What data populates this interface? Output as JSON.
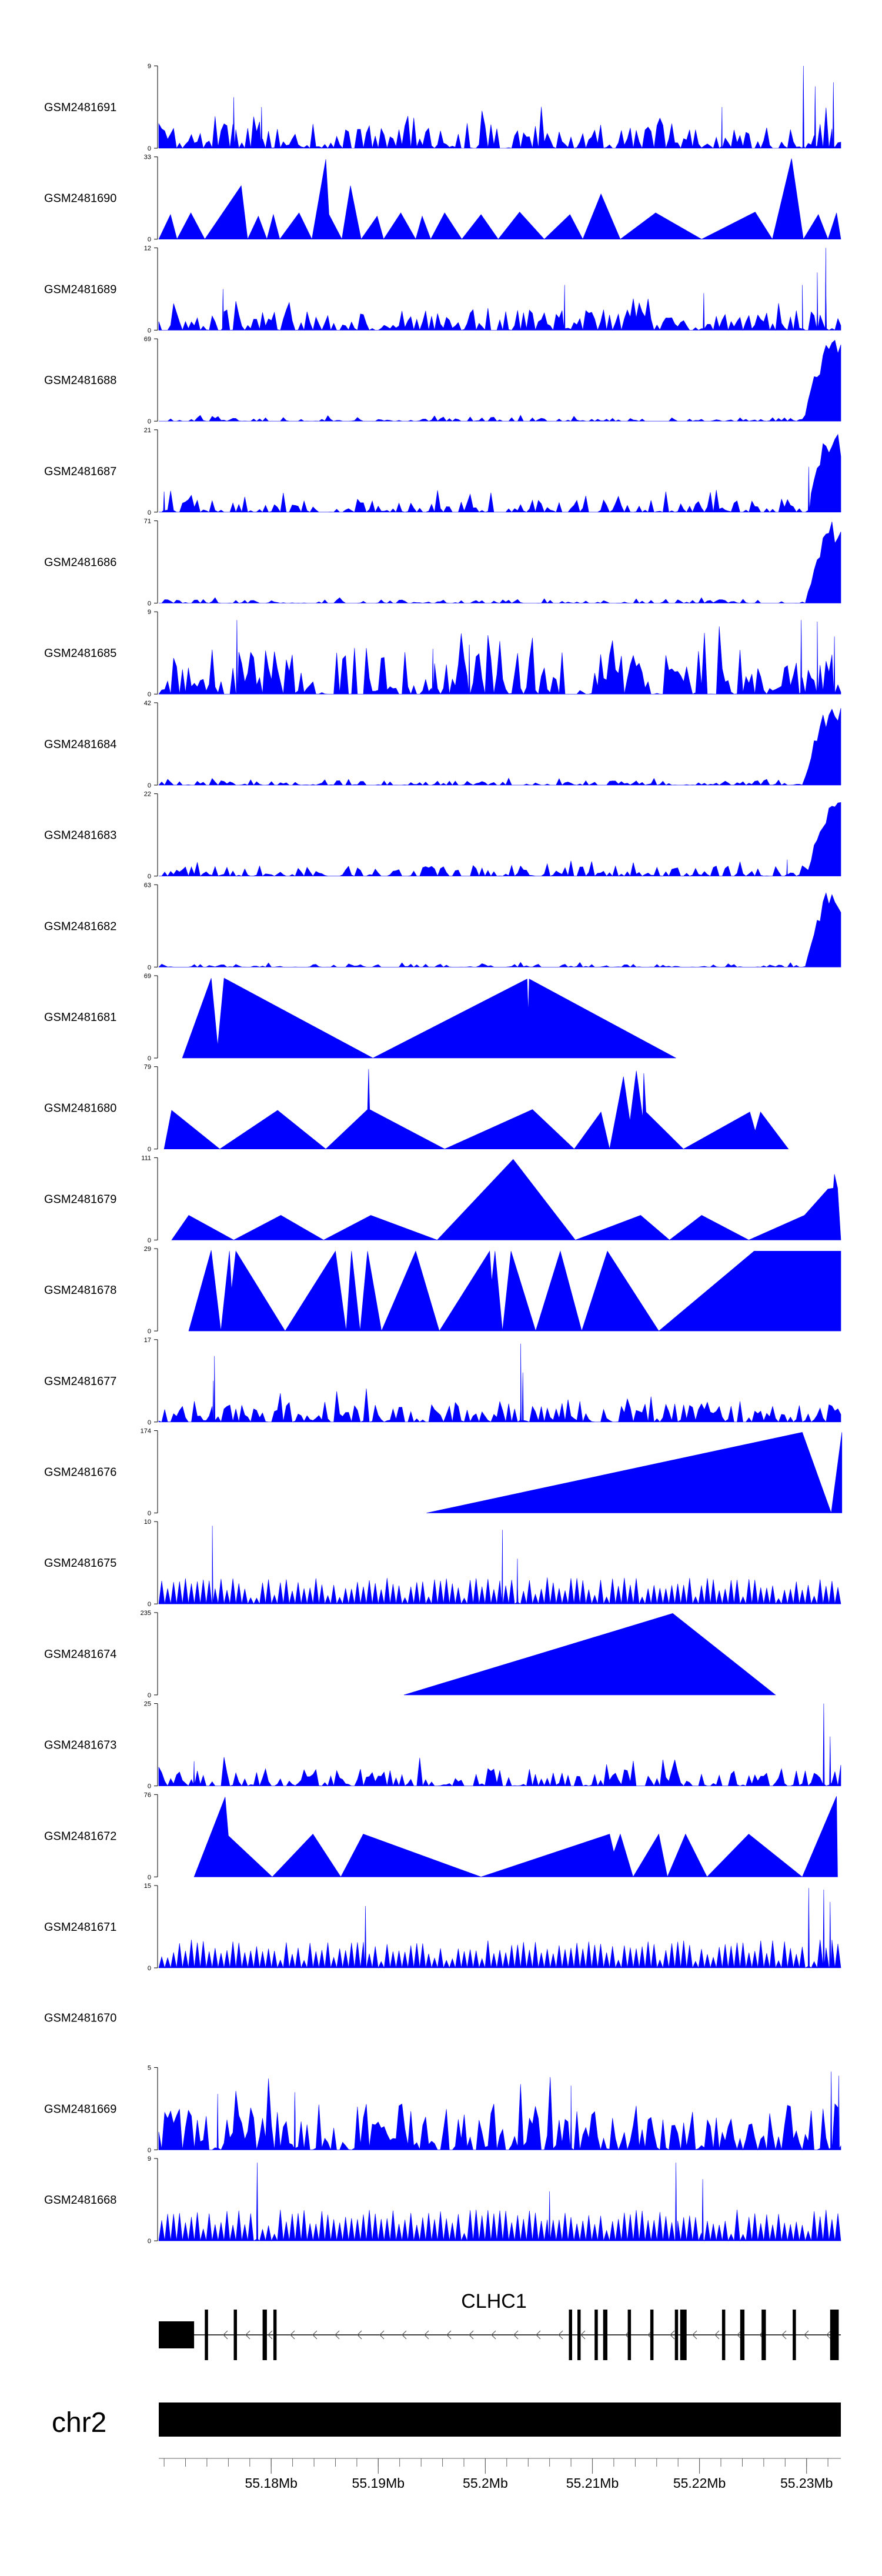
{
  "colors": {
    "signal": "#0000ff",
    "axis": "#000000",
    "gene": "#000000",
    "ideogram": "#000000",
    "background": "#ffffff"
  },
  "chart_data": {
    "type": "area",
    "title": "",
    "chromosome": "chr2",
    "gene": {
      "name": "CLHC1",
      "strand": "-",
      "start": 55.1695,
      "end": 55.2332,
      "exons": [
        [
          55.1695,
          55.1728
        ],
        [
          55.1738,
          55.1741
        ],
        [
          55.1765,
          55.1768
        ],
        [
          55.1792,
          55.1796
        ],
        [
          55.1802,
          55.1805
        ],
        [
          55.2078,
          55.2081
        ],
        [
          55.2086,
          55.2089
        ],
        [
          55.2102,
          55.2105
        ],
        [
          55.211,
          55.2114
        ],
        [
          55.2133,
          55.2136
        ],
        [
          55.2154,
          55.2157
        ],
        [
          55.2177,
          55.218
        ],
        [
          55.2182,
          55.2188
        ],
        [
          55.2221,
          55.2224
        ],
        [
          55.2238,
          55.2242
        ],
        [
          55.2258,
          55.2262
        ],
        [
          55.2287,
          55.229
        ],
        [
          55.2322,
          55.233
        ]
      ]
    },
    "xaxis": {
      "unit": "Mb",
      "range": [
        55.1695,
        55.2332
      ],
      "ticks": [
        55.18,
        55.19,
        55.2,
        55.21,
        55.22,
        55.23
      ],
      "tick_labels": [
        "55.18Mb",
        "55.19Mb",
        "55.2Mb",
        "55.21Mb",
        "55.22Mb",
        "55.23Mb"
      ],
      "minor_step": 0.002
    },
    "tracks": [
      {
        "name": "GSM2481691",
        "ymax_label": "9",
        "ymin_label": "0",
        "ymax": 9,
        "pattern": "noise",
        "density": 0.78,
        "level": 0.17,
        "spikes": [
          [
            55.1765,
            0.62
          ],
          [
            55.1791,
            0.5
          ],
          [
            55.2221,
            0.5
          ],
          [
            55.2297,
            1.0
          ],
          [
            55.2308,
            0.75
          ],
          [
            55.2325,
            0.8
          ]
        ]
      },
      {
        "name": "GSM2481690",
        "ymax_label": "33",
        "ymin_label": "0",
        "ymax": 33,
        "pattern": "peaks",
        "nodes": [
          [
            55.1695,
            0
          ],
          [
            55.1706,
            0.3
          ],
          [
            55.1712,
            0
          ],
          [
            55.1725,
            0.32
          ],
          [
            55.1738,
            0
          ],
          [
            55.1772,
            0.65
          ],
          [
            55.1778,
            0
          ],
          [
            55.1788,
            0.28
          ],
          [
            55.1796,
            0
          ],
          [
            55.1802,
            0.3
          ],
          [
            55.1808,
            0
          ],
          [
            55.1826,
            0.32
          ],
          [
            55.1838,
            0
          ],
          [
            55.1851,
            0.97
          ],
          [
            55.1854,
            0.3
          ],
          [
            55.1866,
            0
          ],
          [
            55.1874,
            0.65
          ],
          [
            55.1884,
            0
          ],
          [
            55.1899,
            0.28
          ],
          [
            55.1905,
            0
          ],
          [
            55.1921,
            0.32
          ],
          [
            55.1935,
            0
          ],
          [
            55.1941,
            0.28
          ],
          [
            55.1949,
            0
          ],
          [
            55.1962,
            0.32
          ],
          [
            55.1978,
            0
          ],
          [
            55.1996,
            0.3
          ],
          [
            55.2012,
            0
          ],
          [
            55.2032,
            0.33
          ],
          [
            55.2055,
            0
          ],
          [
            55.2079,
            0.3
          ],
          [
            55.2091,
            0
          ],
          [
            55.2108,
            0.55
          ],
          [
            55.2126,
            0
          ],
          [
            55.2159,
            0.32
          ],
          [
            55.2202,
            0
          ],
          [
            55.2252,
            0.33
          ],
          [
            55.2268,
            0
          ],
          [
            55.2286,
            0.98
          ],
          [
            55.2297,
            0
          ],
          [
            55.2311,
            0.3
          ],
          [
            55.232,
            0
          ],
          [
            55.2328,
            0.32
          ],
          [
            55.2332,
            0
          ]
        ]
      },
      {
        "name": "GSM2481689",
        "ymax_label": "12",
        "ymin_label": "0",
        "ymax": 12,
        "pattern": "noise",
        "density": 0.8,
        "level": 0.14,
        "spikes": [
          [
            55.1755,
            0.5
          ],
          [
            55.2074,
            0.55
          ],
          [
            55.2204,
            0.45
          ],
          [
            55.2296,
            0.55
          ],
          [
            55.2318,
            1.0
          ],
          [
            55.231,
            0.7
          ]
        ]
      },
      {
        "name": "GSM2481688",
        "ymax_label": "69",
        "ymin_label": "0",
        "ymax": 69,
        "pattern": "tail",
        "density": 0.6,
        "level": 0.025,
        "tail_start": 55.2297,
        "tail_peak": 0.97
      },
      {
        "name": "GSM2481687",
        "ymax_label": "21",
        "ymin_label": "0",
        "ymax": 21,
        "pattern": "tail",
        "density": 0.75,
        "level": 0.09,
        "tail_start": 55.23,
        "tail_peak": 0.98,
        "spikes": [
          [
            55.17,
            0.25
          ],
          [
            55.2302,
            0.55
          ]
        ]
      },
      {
        "name": "GSM2481686",
        "ymax_label": "71",
        "ymin_label": "0",
        "ymax": 71,
        "pattern": "tail",
        "density": 0.6,
        "level": 0.025,
        "tail_start": 55.2299,
        "tail_peak": 0.96
      },
      {
        "name": "GSM2481685",
        "ymax_label": "9",
        "ymin_label": "0",
        "ymax": 9,
        "pattern": "noise",
        "density": 0.82,
        "level": 0.3,
        "spikes": [
          [
            55.1768,
            0.9
          ],
          [
            55.1985,
            0.6
          ],
          [
            55.1951,
            0.55
          ],
          [
            55.2295,
            0.9
          ],
          [
            55.231,
            0.88
          ],
          [
            55.2326,
            0.7
          ]
        ]
      },
      {
        "name": "GSM2481684",
        "ymax_label": "42",
        "ymin_label": "0",
        "ymax": 42,
        "pattern": "tail",
        "density": 0.6,
        "level": 0.03,
        "tail_start": 55.2297,
        "tail_peak": 0.97
      },
      {
        "name": "GSM2481683",
        "ymax_label": "22",
        "ymin_label": "0",
        "ymax": 22,
        "pattern": "tail",
        "density": 0.7,
        "level": 0.07,
        "tail_start": 55.23,
        "tail_peak": 0.93,
        "spikes": [
          [
            55.2282,
            0.2
          ]
        ]
      },
      {
        "name": "GSM2481682",
        "ymax_label": "63",
        "ymin_label": "0",
        "ymax": 63,
        "pattern": "tail",
        "density": 0.55,
        "level": 0.02,
        "tail_start": 55.2299,
        "tail_peak": 0.95
      },
      {
        "name": "GSM2481681",
        "ymax_label": "69",
        "ymin_label": "0",
        "ymax": 69,
        "pattern": "peaks",
        "nodes": [
          [
            55.1717,
            0
          ],
          [
            55.1744,
            0.97
          ],
          [
            55.175,
            0.15
          ],
          [
            55.1756,
            0.97
          ],
          [
            55.1895,
            0
          ],
          [
            55.2039,
            0.96
          ],
          [
            55.204,
            0.55
          ],
          [
            55.2041,
            0.96
          ],
          [
            55.2178,
            0
          ]
        ]
      },
      {
        "name": "GSM2481680",
        "ymax_label": "79",
        "ymin_label": "0",
        "ymax": 79,
        "pattern": "peaks",
        "nodes": [
          [
            55.17,
            0
          ],
          [
            55.1707,
            0.47
          ],
          [
            55.1752,
            0
          ],
          [
            55.1806,
            0.47
          ],
          [
            55.1851,
            0
          ],
          [
            55.189,
            0.48
          ],
          [
            55.1891,
            0.97
          ],
          [
            55.1892,
            0.48
          ],
          [
            55.1962,
            0
          ],
          [
            55.2044,
            0.48
          ],
          [
            55.2083,
            0
          ],
          [
            55.2108,
            0.45
          ],
          [
            55.2116,
            0
          ],
          [
            55.2129,
            0.88
          ],
          [
            55.2135,
            0.34
          ],
          [
            55.2141,
            0.95
          ],
          [
            55.2147,
            0.38
          ],
          [
            55.2148,
            0.92
          ],
          [
            55.215,
            0.45
          ],
          [
            55.2185,
            0
          ],
          [
            55.2247,
            0.45
          ],
          [
            55.2252,
            0.22
          ],
          [
            55.2257,
            0.45
          ],
          [
            55.2283,
            0
          ]
        ]
      },
      {
        "name": "GSM2481679",
        "ymax_label": "111",
        "ymin_label": "0",
        "ymax": 111,
        "pattern": "peaks",
        "nodes": [
          [
            55.1707,
            0
          ],
          [
            55.1723,
            0.3
          ],
          [
            55.1765,
            0
          ],
          [
            55.1809,
            0.3
          ],
          [
            55.1849,
            0
          ],
          [
            55.1893,
            0.3
          ],
          [
            55.1955,
            0
          ],
          [
            55.2026,
            0.98
          ],
          [
            55.2084,
            0
          ],
          [
            55.2145,
            0.3
          ],
          [
            55.2172,
            0
          ],
          [
            55.2202,
            0.3
          ],
          [
            55.2246,
            0
          ],
          [
            55.2298,
            0.3
          ],
          [
            55.232,
            0.62
          ],
          [
            55.2325,
            0.63
          ],
          [
            55.2326,
            0.8
          ],
          [
            55.2329,
            0.63
          ],
          [
            55.2332,
            0
          ]
        ]
      },
      {
        "name": "GSM2481678",
        "ymax_label": "29",
        "ymin_label": "0",
        "ymax": 29,
        "pattern": "peaks",
        "nodes": [
          [
            55.1723,
            0
          ],
          [
            55.1744,
            0.98
          ],
          [
            55.1753,
            0
          ],
          [
            55.1761,
            0.97
          ],
          [
            55.1763,
            0.5
          ],
          [
            55.1767,
            0.97
          ],
          [
            55.1813,
            0
          ],
          [
            55.186,
            0.97
          ],
          [
            55.187,
            0
          ],
          [
            55.1875,
            0.97
          ],
          [
            55.1883,
            0
          ],
          [
            55.189,
            0.97
          ],
          [
            55.1903,
            0
          ],
          [
            55.1935,
            0.97
          ],
          [
            55.1957,
            0
          ],
          [
            55.2004,
            0.97
          ],
          [
            55.2006,
            0.6
          ],
          [
            55.2009,
            0.97
          ],
          [
            55.2016,
            0
          ],
          [
            55.2024,
            0.97
          ],
          [
            55.2047,
            0
          ],
          [
            55.207,
            0.97
          ],
          [
            55.209,
            0
          ],
          [
            55.2114,
            0.97
          ],
          [
            55.2162,
            0
          ],
          [
            55.2251,
            0.97
          ],
          [
            55.2332,
            0.97
          ],
          [
            55.2332,
            0
          ]
        ]
      },
      {
        "name": "GSM2481677",
        "ymax_label": "17",
        "ymin_label": "0",
        "ymax": 17,
        "pattern": "noise",
        "density": 0.75,
        "level": 0.14,
        "spikes": [
          [
            55.1747,
            0.8
          ],
          [
            55.2033,
            0.95
          ],
          [
            55.2035,
            0.6
          ],
          [
            55.1746,
            0.5
          ]
        ]
      },
      {
        "name": "GSM2481676",
        "ymax_label": "174",
        "ymin_label": "0",
        "ymax": 174,
        "pattern": "peaks",
        "nodes": [
          [
            55.1945,
            0
          ],
          [
            55.2296,
            0.98
          ],
          [
            55.2323,
            0
          ],
          [
            55.2333,
            0.98
          ],
          [
            55.2333,
            0
          ]
        ]
      },
      {
        "name": "GSM2481675",
        "ymax_label": "10",
        "ymin_label": "0",
        "ymax": 10,
        "pattern": "peaks_dense",
        "density": 0.85,
        "level": 0.28,
        "spikes": [
          [
            55.1745,
            0.95
          ],
          [
            55.2016,
            0.9
          ],
          [
            55.203,
            0.55
          ]
        ]
      },
      {
        "name": "GSM2481674",
        "ymax_label": "235",
        "ymin_label": "0",
        "ymax": 235,
        "pattern": "peaks",
        "nodes": [
          [
            55.1924,
            0
          ],
          [
            55.2175,
            0.99
          ],
          [
            55.2271,
            0
          ]
        ]
      },
      {
        "name": "GSM2481673",
        "ymax_label": "25",
        "ymin_label": "0",
        "ymax": 25,
        "pattern": "noise",
        "density": 0.7,
        "level": 0.12,
        "spikes": [
          [
            55.1728,
            0.3
          ],
          [
            55.2316,
            1.0
          ],
          [
            55.2322,
            0.6
          ]
        ]
      },
      {
        "name": "GSM2481672",
        "ymax_label": "76",
        "ymin_label": "0",
        "ymax": 76,
        "pattern": "peaks",
        "nodes": [
          [
            55.1728,
            0
          ],
          [
            55.1757,
            0.97
          ],
          [
            55.176,
            0.5
          ],
          [
            55.1801,
            0
          ],
          [
            55.1839,
            0.52
          ],
          [
            55.1865,
            0
          ],
          [
            55.1886,
            0.52
          ],
          [
            55.1996,
            0
          ],
          [
            55.2116,
            0.52
          ],
          [
            55.212,
            0.3
          ],
          [
            55.2126,
            0.52
          ],
          [
            55.2138,
            0
          ],
          [
            55.2162,
            0.52
          ],
          [
            55.217,
            0
          ],
          [
            55.2187,
            0.52
          ],
          [
            55.2207,
            0
          ],
          [
            55.2246,
            0.52
          ],
          [
            55.2296,
            0
          ],
          [
            55.2328,
            0.98
          ],
          [
            55.2329,
            0
          ]
        ]
      },
      {
        "name": "GSM2481671",
        "ymax_label": "15",
        "ymin_label": "0",
        "ymax": 15,
        "pattern": "peaks_dense",
        "density": 0.82,
        "level": 0.3,
        "spikes": [
          [
            55.1888,
            0.75
          ],
          [
            55.2302,
            0.97
          ],
          [
            55.2316,
            0.95
          ],
          [
            55.2322,
            0.8
          ]
        ]
      },
      {
        "name": "GSM2481670",
        "ymax_label": "",
        "ymin_label": "",
        "ymax": 0,
        "pattern": "empty"
      },
      {
        "name": "GSM2481669",
        "ymax_label": "5",
        "ymin_label": "0",
        "ymax": 5,
        "pattern": "noise",
        "density": 0.85,
        "level": 0.32,
        "spikes": [
          [
            55.175,
            0.68
          ],
          [
            55.1822,
            0.7
          ],
          [
            55.208,
            0.78
          ],
          [
            55.2323,
            0.95
          ],
          [
            55.233,
            0.9
          ]
        ]
      },
      {
        "name": "GSM2481668",
        "ymax_label": "9",
        "ymin_label": "0",
        "ymax": 9,
        "pattern": "peaks_dense",
        "density": 0.9,
        "level": 0.33,
        "spikes": [
          [
            55.1787,
            0.95
          ],
          [
            55.2178,
            0.95
          ],
          [
            55.2203,
            0.75
          ],
          [
            55.206,
            0.6
          ]
        ]
      }
    ]
  }
}
